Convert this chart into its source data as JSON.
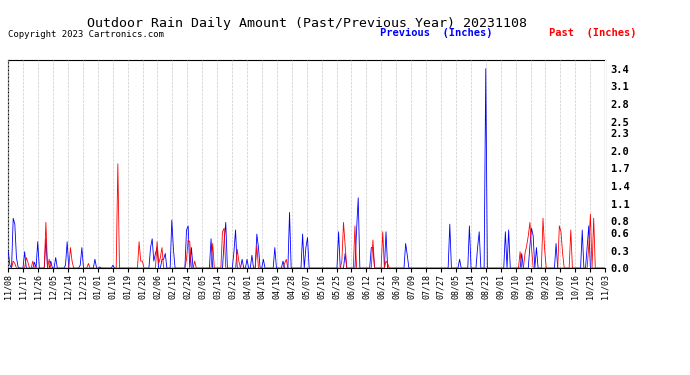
{
  "title": "Outdoor Rain Daily Amount (Past/Previous Year) 20231108",
  "copyright": "Copyright 2023 Cartronics.com",
  "legend_previous": "Previous  (Inches)",
  "legend_past": "Past  (Inches)",
  "color_previous": "blue",
  "color_past": "red",
  "yticks": [
    0.0,
    0.3,
    0.6,
    0.8,
    1.1,
    1.4,
    1.7,
    2.0,
    2.3,
    2.5,
    2.8,
    3.1,
    3.4
  ],
  "ylim": [
    0.0,
    3.55
  ],
  "background_color": "#ffffff",
  "grid_color": "#cccccc",
  "xtick_labels": [
    "11/08",
    "11/17",
    "11/26",
    "12/05",
    "12/14",
    "12/23",
    "01/01",
    "01/10",
    "01/19",
    "01/28",
    "02/06",
    "02/15",
    "02/24",
    "03/05",
    "03/14",
    "03/23",
    "04/01",
    "04/10",
    "04/19",
    "04/28",
    "05/07",
    "05/16",
    "05/25",
    "06/03",
    "06/12",
    "06/21",
    "06/30",
    "07/09",
    "07/18",
    "07/27",
    "08/05",
    "08/14",
    "08/23",
    "09/01",
    "09/10",
    "09/19",
    "09/28",
    "10/07",
    "10/16",
    "10/25",
    "11/03"
  ],
  "n_points": 366,
  "previous_data": [
    0.28,
    0.05,
    0.0,
    0.85,
    0.75,
    0.18,
    0.02,
    0.0,
    0.0,
    0.0,
    0.28,
    0.0,
    0.0,
    0.0,
    0.0,
    0.0,
    0.1,
    0.0,
    0.45,
    0.0,
    0.0,
    0.0,
    0.0,
    0.5,
    0.0,
    0.0,
    0.12,
    0.0,
    0.0,
    0.18,
    0.0,
    0.0,
    0.0,
    0.0,
    0.0,
    0.05,
    0.45,
    0.0,
    0.0,
    0.0,
    0.0,
    0.0,
    0.0,
    0.0,
    0.05,
    0.35,
    0.0,
    0.0,
    0.0,
    0.0,
    0.0,
    0.0,
    0.0,
    0.15,
    0.0,
    0.0,
    0.02,
    0.0,
    0.0,
    0.0,
    0.0,
    0.0,
    0.0,
    0.0,
    0.05,
    0.0,
    0.0,
    0.0,
    0.0,
    0.0,
    0.0,
    0.0,
    0.0,
    0.0,
    0.0,
    0.0,
    0.0,
    0.0,
    0.0,
    0.0,
    0.0,
    0.0,
    0.0,
    0.0,
    0.0,
    0.0,
    0.0,
    0.35,
    0.5,
    0.12,
    0.25,
    0.35,
    0.0,
    0.0,
    0.15,
    0.15,
    0.25,
    0.0,
    0.0,
    0.0,
    0.82,
    0.32,
    0.0,
    0.0,
    0.0,
    0.0,
    0.0,
    0.0,
    0.0,
    0.65,
    0.72,
    0.0,
    0.35,
    0.0,
    0.0,
    0.0,
    0.0,
    0.0,
    0.0,
    0.0,
    0.0,
    0.0,
    0.0,
    0.0,
    0.5,
    0.0,
    0.0,
    0.0,
    0.0,
    0.0,
    0.0,
    0.0,
    0.45,
    0.78,
    0.0,
    0.0,
    0.0,
    0.0,
    0.28,
    0.65,
    0.0,
    0.0,
    0.0,
    0.15,
    0.0,
    0.0,
    0.15,
    0.0,
    0.0,
    0.22,
    0.0,
    0.0,
    0.58,
    0.35,
    0.0,
    0.0,
    0.15,
    0.0,
    0.0,
    0.0,
    0.0,
    0.0,
    0.0,
    0.35,
    0.0,
    0.0,
    0.0,
    0.0,
    0.12,
    0.0,
    0.0,
    0.0,
    0.95,
    0.0,
    0.0,
    0.0,
    0.0,
    0.0,
    0.0,
    0.0,
    0.58,
    0.0,
    0.35,
    0.52,
    0.0,
    0.0,
    0.0,
    0.0,
    0.0,
    0.0,
    0.0,
    0.0,
    0.0,
    0.0,
    0.0,
    0.0,
    0.0,
    0.0,
    0.0,
    0.0,
    0.0,
    0.0,
    0.62,
    0.0,
    0.0,
    0.0,
    0.25,
    0.0,
    0.0,
    0.0,
    0.0,
    0.0,
    0.0,
    0.65,
    1.2,
    0.0,
    0.0,
    0.0,
    0.0,
    0.0,
    0.0,
    0.0,
    0.35,
    0.35,
    0.0,
    0.0,
    0.0,
    0.0,
    0.0,
    0.0,
    0.0,
    0.62,
    0.0,
    0.0,
    0.0,
    0.0,
    0.0,
    0.0,
    0.0,
    0.0,
    0.0,
    0.0,
    0.0,
    0.42,
    0.22,
    0.0,
    0.0,
    0.0,
    0.0,
    0.0,
    0.0,
    0.0,
    0.0,
    0.0,
    0.0,
    0.0,
    0.0,
    0.0,
    0.0,
    0.0,
    0.0,
    0.0,
    0.0,
    0.0,
    0.0,
    0.0,
    0.0,
    0.0,
    0.0,
    0.0,
    0.75,
    0.0,
    0.0,
    0.0,
    0.0,
    0.0,
    0.15,
    0.0,
    0.0,
    0.0,
    0.0,
    0.0,
    0.72,
    0.0,
    0.0,
    0.0,
    0.0,
    0.35,
    0.62,
    0.0,
    0.0,
    0.0,
    3.4,
    0.0,
    0.0,
    0.0,
    0.0,
    0.0,
    0.0,
    0.0,
    0.0,
    0.0,
    0.0,
    0.0,
    0.62,
    0.0,
    0.65,
    0.0,
    0.0,
    0.0,
    0.0,
    0.0,
    0.0,
    0.0,
    0.25,
    0.0,
    0.0,
    0.0,
    0.0,
    0.38,
    0.68,
    0.55,
    0.0,
    0.35,
    0.0,
    0.0,
    0.0,
    0.0,
    0.0,
    0.0,
    0.0,
    0.0,
    0.0,
    0.0,
    0.0,
    0.42,
    0.0,
    0.0,
    0.0,
    0.0,
    0.0,
    0.0,
    0.0,
    0.0,
    0.0,
    0.0,
    0.0,
    0.0,
    0.0,
    0.0,
    0.0,
    0.65,
    0.0,
    0.0,
    0.35,
    0.72,
    0.0
  ],
  "past_data": [
    0.0,
    0.0,
    0.0,
    0.12,
    0.08,
    0.0,
    0.0,
    0.0,
    0.0,
    0.0,
    0.0,
    0.18,
    0.1,
    0.0,
    0.0,
    0.12,
    0.0,
    0.0,
    0.0,
    0.0,
    0.0,
    0.0,
    0.0,
    0.78,
    0.0,
    0.15,
    0.0,
    0.0,
    0.0,
    0.0,
    0.0,
    0.0,
    0.0,
    0.0,
    0.0,
    0.0,
    0.0,
    0.0,
    0.35,
    0.12,
    0.0,
    0.0,
    0.0,
    0.0,
    0.0,
    0.0,
    0.0,
    0.0,
    0.0,
    0.08,
    0.0,
    0.0,
    0.0,
    0.0,
    0.0,
    0.0,
    0.0,
    0.0,
    0.0,
    0.0,
    0.0,
    0.0,
    0.0,
    0.0,
    0.0,
    0.0,
    0.0,
    1.78,
    0.0,
    0.0,
    0.0,
    0.0,
    0.0,
    0.0,
    0.0,
    0.0,
    0.0,
    0.0,
    0.0,
    0.0,
    0.45,
    0.12,
    0.12,
    0.0,
    0.0,
    0.0,
    0.0,
    0.0,
    0.0,
    0.0,
    0.0,
    0.45,
    0.08,
    0.18,
    0.35,
    0.0,
    0.0,
    0.0,
    0.0,
    0.0,
    0.0,
    0.0,
    0.0,
    0.0,
    0.0,
    0.0,
    0.0,
    0.0,
    0.0,
    0.15,
    0.48,
    0.45,
    0.0,
    0.0,
    0.12,
    0.0,
    0.0,
    0.0,
    0.0,
    0.0,
    0.0,
    0.0,
    0.0,
    0.0,
    0.0,
    0.42,
    0.0,
    0.0,
    0.0,
    0.0,
    0.0,
    0.62,
    0.68,
    0.0,
    0.0,
    0.0,
    0.0,
    0.0,
    0.0,
    0.0,
    0.32,
    0.12,
    0.0,
    0.0,
    0.0,
    0.0,
    0.0,
    0.0,
    0.0,
    0.0,
    0.0,
    0.0,
    0.38,
    0.0,
    0.0,
    0.0,
    0.0,
    0.0,
    0.0,
    0.0,
    0.0,
    0.0,
    0.0,
    0.0,
    0.0,
    0.0,
    0.0,
    0.0,
    0.0,
    0.08,
    0.15,
    0.0,
    0.0,
    0.0,
    0.0,
    0.0,
    0.0,
    0.0,
    0.0,
    0.0,
    0.0,
    0.0,
    0.0,
    0.0,
    0.0,
    0.0,
    0.0,
    0.0,
    0.0,
    0.0,
    0.0,
    0.0,
    0.0,
    0.0,
    0.0,
    0.0,
    0.0,
    0.0,
    0.0,
    0.0,
    0.0,
    0.0,
    0.0,
    0.0,
    0.12,
    0.78,
    0.38,
    0.0,
    0.0,
    0.0,
    0.0,
    0.0,
    0.72,
    0.0,
    0.0,
    0.0,
    0.0,
    0.0,
    0.0,
    0.0,
    0.0,
    0.0,
    0.0,
    0.48,
    0.0,
    0.0,
    0.0,
    0.0,
    0.0,
    0.62,
    0.0,
    0.12,
    0.08,
    0.0,
    0.0,
    0.0,
    0.0,
    0.0,
    0.0,
    0.0,
    0.0,
    0.0,
    0.0,
    0.0,
    0.0,
    0.0,
    0.0,
    0.0,
    0.0,
    0.0,
    0.0,
    0.0,
    0.0,
    0.0,
    0.0,
    0.0,
    0.0,
    0.0,
    0.0,
    0.0,
    0.0,
    0.0,
    0.0,
    0.0,
    0.0,
    0.0,
    0.0,
    0.0,
    0.0,
    0.0,
    0.0,
    0.0,
    0.0,
    0.0,
    0.0,
    0.0,
    0.0,
    0.0,
    0.0,
    0.0,
    0.0,
    0.0,
    0.0,
    0.0,
    0.0,
    0.0,
    0.0,
    0.0,
    0.0,
    0.0,
    0.0,
    0.0,
    0.0,
    0.0,
    0.0,
    0.0,
    0.0,
    0.0,
    0.0,
    0.0,
    0.0,
    0.0,
    0.0,
    0.0,
    0.0,
    0.0,
    0.0,
    0.0,
    0.0,
    0.0,
    0.0,
    0.0,
    0.0,
    0.28,
    0.0,
    0.0,
    0.25,
    0.38,
    0.55,
    0.78,
    0.35,
    0.0,
    0.0,
    0.0,
    0.0,
    0.0,
    0.0,
    0.85,
    0.32,
    0.0,
    0.0,
    0.0,
    0.0,
    0.0,
    0.0,
    0.0,
    0.0,
    0.72,
    0.62,
    0.25,
    0.0,
    0.0,
    0.0,
    0.0,
    0.65,
    0.0,
    0.0,
    0.0,
    0.0,
    0.0,
    0.0,
    0.0,
    0.0,
    0.0,
    0.0,
    0.38,
    0.92,
    0.0,
    0.85,
    0.0
  ]
}
